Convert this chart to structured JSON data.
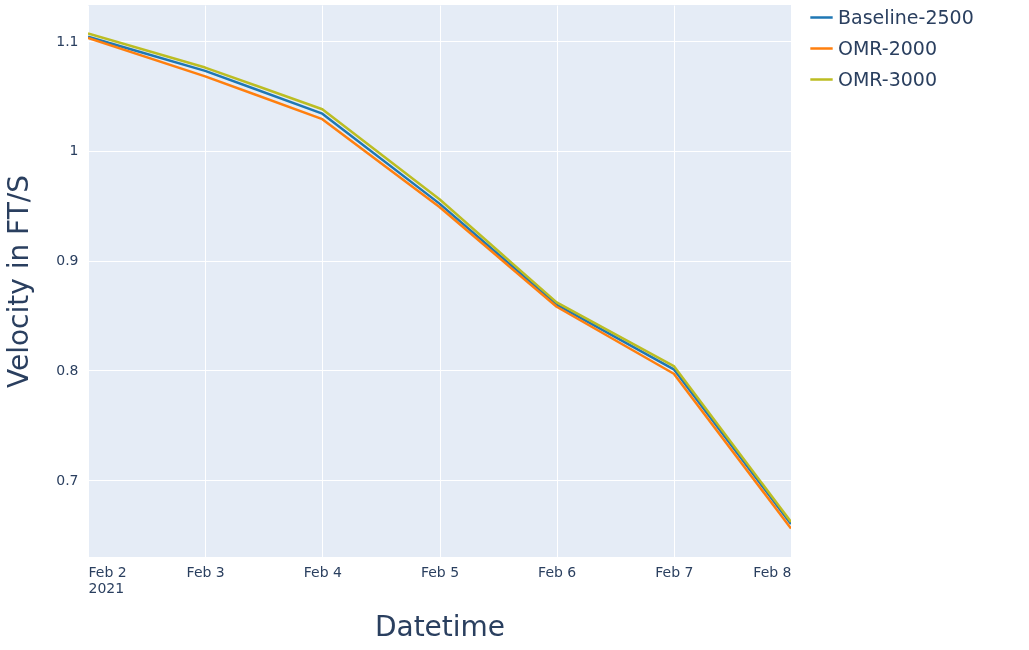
{
  "chart_data": {
    "type": "line",
    "xlabel": "Datetime",
    "ylabel": "Velocity in FT/S",
    "x": [
      "2021-02-02",
      "2021-02-03",
      "2021-02-04",
      "2021-02-05",
      "2021-02-06",
      "2021-02-07",
      "2021-02-08"
    ],
    "series": [
      {
        "name": "Baseline-2500",
        "color": "#1f77b4",
        "values": [
          1.104,
          1.073,
          1.034,
          0.952,
          0.86,
          0.801,
          0.66
        ]
      },
      {
        "name": "OMR-2000",
        "color": "#ff7f0e",
        "values": [
          1.103,
          1.068,
          1.029,
          0.949,
          0.858,
          0.797,
          0.656
        ]
      },
      {
        "name": "OMR-3000",
        "color": "#bcbd22",
        "values": [
          1.107,
          1.076,
          1.038,
          0.956,
          0.862,
          0.804,
          0.662
        ]
      }
    ],
    "xlim": [
      "2021-02-02",
      "2021-02-08"
    ],
    "xticks": [
      {
        "value": "2021-02-02",
        "label": "Feb 2\n2021"
      },
      {
        "value": "2021-02-03",
        "label": "Feb 3"
      },
      {
        "value": "2021-02-04",
        "label": "Feb 4"
      },
      {
        "value": "2021-02-05",
        "label": "Feb 5"
      },
      {
        "value": "2021-02-06",
        "label": "Feb 6"
      },
      {
        "value": "2021-02-07",
        "label": "Feb 7"
      },
      {
        "value": "2021-02-08",
        "label": "Feb 8"
      }
    ],
    "ylim": [
      0.63,
      1.133
    ],
    "yticks": [
      0.7,
      0.8,
      0.9,
      1,
      1.1
    ],
    "grid": true,
    "legend": "top right",
    "marker": "none",
    "line_style": "solid"
  }
}
